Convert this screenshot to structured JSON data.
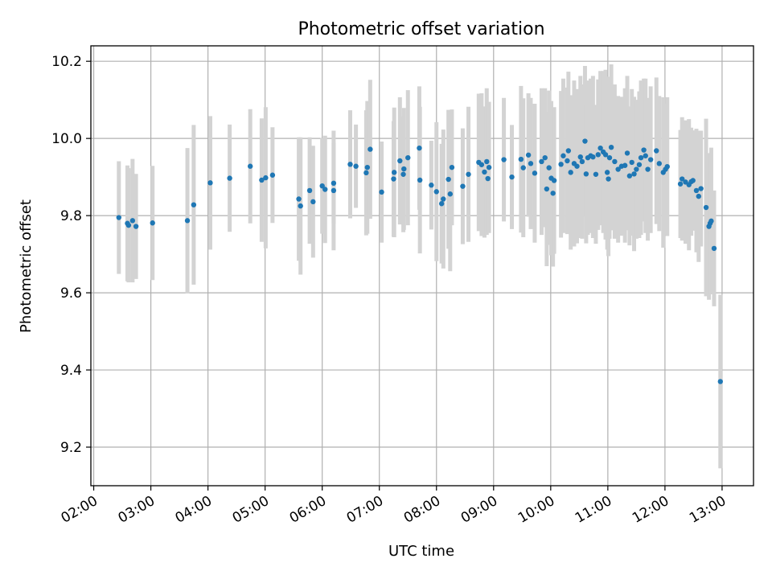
{
  "chart_data": {
    "type": "scatter",
    "title": "Photometric offset variation",
    "xlabel": "UTC time",
    "ylabel": "Photometric offset",
    "xlim": [
      1.95,
      13.55
    ],
    "ylim": [
      9.1,
      10.24
    ],
    "grid": true,
    "legend": "none",
    "xticks": [
      {
        "value": 2,
        "label": "02:00"
      },
      {
        "value": 3,
        "label": "03:00"
      },
      {
        "value": 4,
        "label": "04:00"
      },
      {
        "value": 5,
        "label": "05:00"
      },
      {
        "value": 6,
        "label": "06:00"
      },
      {
        "value": 7,
        "label": "07:00"
      },
      {
        "value": 8,
        "label": "08:00"
      },
      {
        "value": 9,
        "label": "09:00"
      },
      {
        "value": 10,
        "label": "10:00"
      },
      {
        "value": 11,
        "label": "11:00"
      },
      {
        "value": 12,
        "label": "12:00"
      },
      {
        "value": 13,
        "label": "13:00"
      }
    ],
    "yticks": [
      {
        "value": 9.2,
        "label": "9.2"
      },
      {
        "value": 9.4,
        "label": "9.4"
      },
      {
        "value": 9.6,
        "label": "9.6"
      },
      {
        "value": 9.8,
        "label": "9.8"
      },
      {
        "value": 10.0,
        "label": "10.0"
      },
      {
        "value": 10.2,
        "label": "10.2"
      }
    ],
    "marker_color": "#1f77b4",
    "errorbar_color": "#d3d3d3",
    "series": [
      {
        "name": "offset",
        "points": [
          [
            2.44,
            9.795,
            0.146
          ],
          [
            2.59,
            9.78,
            0.15
          ],
          [
            2.61,
            9.775,
            0.148
          ],
          [
            2.68,
            9.787,
            0.16
          ],
          [
            2.74,
            9.772,
            0.136
          ],
          [
            3.03,
            9.781,
            0.148
          ],
          [
            3.64,
            9.787,
            0.188
          ],
          [
            3.75,
            9.828,
            0.207
          ],
          [
            4.04,
            9.885,
            0.173
          ],
          [
            4.38,
            9.897,
            0.139
          ],
          [
            4.74,
            9.928,
            0.148
          ],
          [
            4.94,
            9.892,
            0.16
          ],
          [
            5.01,
            9.898,
            0.183
          ],
          [
            5.13,
            9.905,
            0.124
          ],
          [
            5.59,
            9.843,
            0.16
          ],
          [
            5.62,
            9.825,
            0.178
          ],
          [
            5.78,
            9.865,
            0.138
          ],
          [
            5.84,
            9.836,
            0.145
          ],
          [
            6.0,
            9.877,
            0.124
          ],
          [
            6.05,
            9.868,
            0.139
          ],
          [
            6.2,
            9.884,
            0.105
          ],
          [
            6.2,
            9.865,
            0.155
          ],
          [
            6.49,
            9.933,
            0.14
          ],
          [
            6.59,
            9.928,
            0.108
          ],
          [
            6.77,
            9.911,
            0.162
          ],
          [
            6.79,
            9.925,
            0.172
          ],
          [
            6.84,
            9.972,
            0.18
          ],
          [
            7.04,
            9.861,
            0.131
          ],
          [
            7.25,
            9.895,
            0.15
          ],
          [
            7.26,
            9.912,
            0.168
          ],
          [
            7.36,
            9.942,
            0.165
          ],
          [
            7.43,
            9.921,
            0.158
          ],
          [
            7.42,
            9.907,
            0.15
          ],
          [
            7.5,
            9.95,
            0.175
          ],
          [
            7.7,
            9.975,
            0.16
          ],
          [
            7.71,
            9.892,
            0.19
          ],
          [
            7.91,
            9.879,
            0.115
          ],
          [
            8.0,
            9.862,
            0.18
          ],
          [
            8.09,
            9.831,
            0.155
          ],
          [
            8.12,
            9.843,
            0.18
          ],
          [
            8.21,
            9.894,
            0.18
          ],
          [
            8.24,
            9.856,
            0.2
          ],
          [
            8.27,
            9.925,
            0.15
          ],
          [
            8.46,
            9.876,
            0.15
          ],
          [
            8.56,
            9.907,
            0.175
          ],
          [
            8.74,
            9.938,
            0.178
          ],
          [
            8.79,
            9.932,
            0.185
          ],
          [
            8.84,
            9.913,
            0.17
          ],
          [
            8.88,
            9.94,
            0.19
          ],
          [
            8.9,
            9.896,
            0.135
          ],
          [
            8.92,
            9.925,
            0.17
          ],
          [
            9.18,
            9.945,
            0.16
          ],
          [
            9.32,
            9.9,
            0.135
          ],
          [
            9.48,
            9.946,
            0.19
          ],
          [
            9.52,
            9.924,
            0.18
          ],
          [
            9.61,
            9.957,
            0.16
          ],
          [
            9.65,
            9.935,
            0.17
          ],
          [
            9.72,
            9.91,
            0.18
          ],
          [
            9.84,
            9.94,
            0.19
          ],
          [
            9.9,
            9.95,
            0.18
          ],
          [
            9.93,
            9.869,
            0.2
          ],
          [
            9.97,
            9.924,
            0.2
          ],
          [
            10.01,
            9.897,
            0.2
          ],
          [
            10.04,
            9.858,
            0.19
          ],
          [
            10.06,
            9.891,
            0.19
          ],
          [
            10.18,
            9.933,
            0.19
          ],
          [
            10.22,
            9.955,
            0.2
          ],
          [
            10.29,
            9.942,
            0.19
          ],
          [
            10.31,
            9.968,
            0.205
          ],
          [
            10.35,
            9.912,
            0.2
          ],
          [
            10.41,
            9.935,
            0.215
          ],
          [
            10.46,
            9.928,
            0.2
          ],
          [
            10.52,
            9.952,
            0.21
          ],
          [
            10.55,
            9.94,
            0.2
          ],
          [
            10.6,
            9.993,
            0.195
          ],
          [
            10.62,
            9.908,
            0.18
          ],
          [
            10.65,
            9.95,
            0.2
          ],
          [
            10.7,
            9.955,
            0.2
          ],
          [
            10.74,
            9.952,
            0.21
          ],
          [
            10.79,
            9.907,
            0.18
          ],
          [
            10.83,
            9.958,
            0.195
          ],
          [
            10.87,
            9.975,
            0.2
          ],
          [
            10.92,
            9.965,
            0.21
          ],
          [
            10.96,
            9.958,
            0.22
          ],
          [
            10.99,
            9.912,
            0.2
          ],
          [
            11.01,
            9.895,
            0.2
          ],
          [
            11.03,
            9.95,
            0.21
          ],
          [
            11.06,
            9.977,
            0.215
          ],
          [
            11.12,
            9.94,
            0.2
          ],
          [
            11.18,
            9.92,
            0.19
          ],
          [
            11.24,
            9.928,
            0.18
          ],
          [
            11.3,
            9.93,
            0.2
          ],
          [
            11.34,
            9.962,
            0.2
          ],
          [
            11.38,
            9.903,
            0.18
          ],
          [
            11.42,
            9.938,
            0.19
          ],
          [
            11.46,
            9.908,
            0.2
          ],
          [
            11.5,
            9.92,
            0.18
          ],
          [
            11.55,
            9.932,
            0.19
          ],
          [
            11.58,
            9.95,
            0.2
          ],
          [
            11.63,
            9.97,
            0.185
          ],
          [
            11.66,
            9.955,
            0.2
          ],
          [
            11.7,
            9.92,
            0.185
          ],
          [
            11.75,
            9.945,
            0.19
          ],
          [
            11.85,
            9.968,
            0.19
          ],
          [
            11.9,
            9.935,
            0.175
          ],
          [
            11.97,
            9.912,
            0.195
          ],
          [
            12.01,
            9.92,
            0.17
          ],
          [
            12.04,
            9.927,
            0.18
          ],
          [
            12.27,
            9.882,
            0.14
          ],
          [
            12.3,
            9.895,
            0.16
          ],
          [
            12.36,
            9.887,
            0.16
          ],
          [
            12.42,
            9.88,
            0.17
          ],
          [
            12.46,
            9.888,
            0.14
          ],
          [
            12.49,
            9.891,
            0.13
          ],
          [
            12.55,
            9.865,
            0.16
          ],
          [
            12.59,
            9.85,
            0.17
          ],
          [
            12.63,
            9.87,
            0.15
          ],
          [
            12.72,
            9.821,
            0.23
          ],
          [
            12.77,
            9.772,
            0.19
          ],
          [
            12.79,
            9.78,
            0.18
          ],
          [
            12.81,
            9.786,
            0.19
          ],
          [
            12.86,
            9.715,
            0.15
          ],
          [
            12.97,
            9.37,
            0.225
          ]
        ]
      }
    ]
  }
}
